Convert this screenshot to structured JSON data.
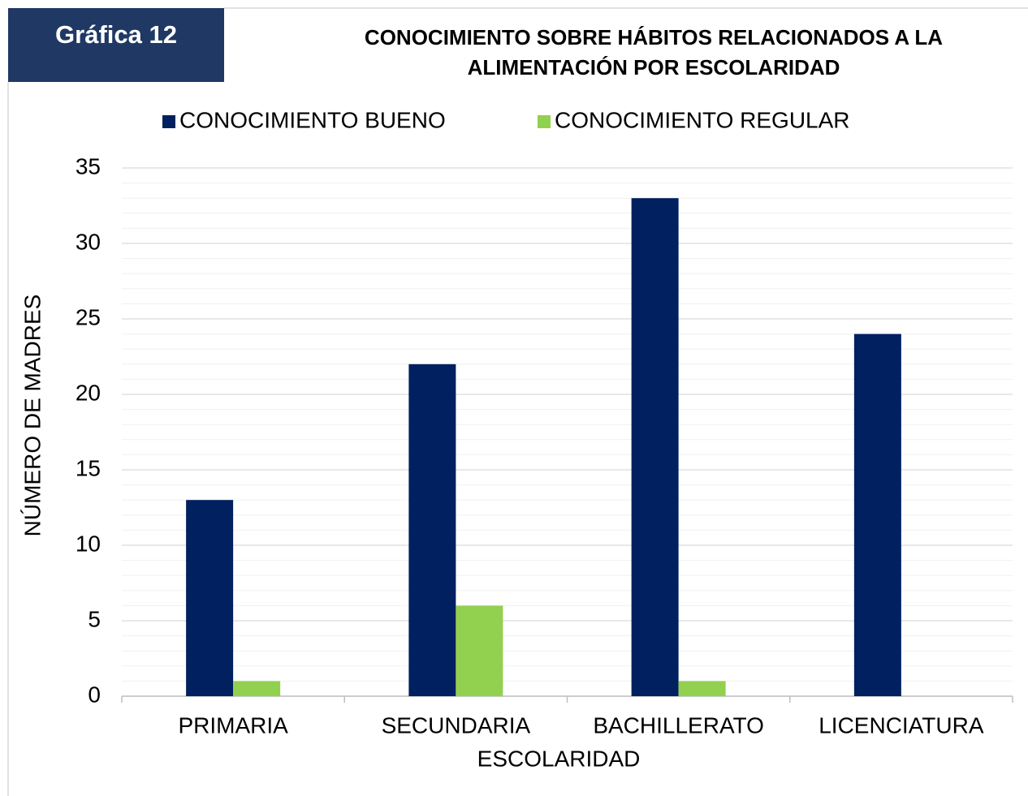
{
  "label": "Gráfica 12",
  "chart_data": {
    "type": "bar",
    "title": [
      "CONOCIMIENTO SOBRE HÁBITOS RELACIONADOS A LA",
      "ALIMENTACIÓN POR ESCOLARIDAD"
    ],
    "x_label": "ESCOLARIDAD",
    "y_label": "NÚMERO DE MADRES",
    "categories": [
      "PRIMARIA",
      "SECUNDARIA",
      "BACHILLERATO",
      "LICENCIATURA"
    ],
    "series": [
      {
        "name": "CONOCIMIENTO BUENO",
        "color": "#002060",
        "values": [
          13,
          22,
          33,
          24
        ]
      },
      {
        "name": "CONOCIMIENTO REGULAR",
        "color": "#92d050",
        "values": [
          1,
          6,
          1,
          0
        ]
      }
    ],
    "ylim": [
      0,
      35
    ],
    "yticks": [
      0,
      5,
      10,
      15,
      20,
      25,
      30,
      35
    ],
    "minor_yticks": [
      1,
      2,
      3,
      4,
      6,
      7,
      8,
      9,
      11,
      12,
      13,
      14,
      16,
      17,
      18,
      19,
      21,
      22,
      23,
      24,
      26,
      27,
      28,
      29,
      31,
      32,
      33,
      34
    ],
    "grid": true,
    "legend": "top"
  }
}
